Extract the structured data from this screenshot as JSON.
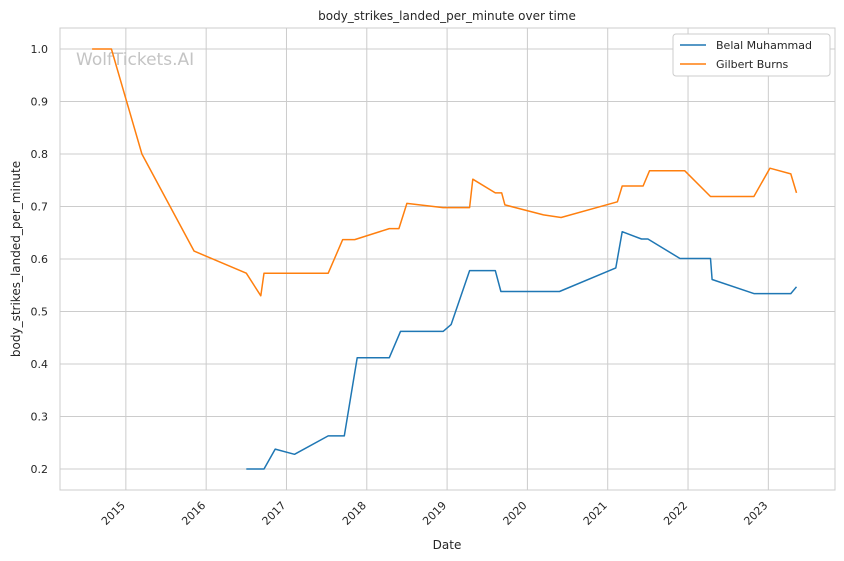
{
  "chart_data": {
    "type": "line",
    "title": "body_strikes_landed_per_minute over time",
    "xlabel": "Date",
    "ylabel": "body_strikes_landed_per_minute",
    "watermark": "WolfTickets.AI",
    "x_ticks": [
      "2015",
      "2016",
      "2017",
      "2018",
      "2019",
      "2020",
      "2021",
      "2022",
      "2023"
    ],
    "y_ticks": [
      "0.2",
      "0.3",
      "0.4",
      "0.5",
      "0.6",
      "0.7",
      "0.8",
      "0.9",
      "1.0"
    ],
    "xlim": [
      2014.18,
      2023.83
    ],
    "ylim": [
      0.16,
      1.04
    ],
    "grid": true,
    "legend_position": "top-right",
    "series": [
      {
        "name": "Belal Muhammad",
        "color": "#1f77b4",
        "points": [
          [
            2016.5,
            0.2
          ],
          [
            2016.72,
            0.2
          ],
          [
            2016.86,
            0.238
          ],
          [
            2017.1,
            0.228
          ],
          [
            2017.52,
            0.263
          ],
          [
            2017.72,
            0.263
          ],
          [
            2017.88,
            0.412
          ],
          [
            2018.28,
            0.412
          ],
          [
            2018.42,
            0.462
          ],
          [
            2018.95,
            0.462
          ],
          [
            2019.05,
            0.475
          ],
          [
            2019.28,
            0.578
          ],
          [
            2019.6,
            0.578
          ],
          [
            2019.67,
            0.538
          ],
          [
            2020.4,
            0.538
          ],
          [
            2021.1,
            0.583
          ],
          [
            2021.18,
            0.652
          ],
          [
            2021.42,
            0.638
          ],
          [
            2021.5,
            0.638
          ],
          [
            2021.9,
            0.601
          ],
          [
            2022.28,
            0.601
          ],
          [
            2022.3,
            0.561
          ],
          [
            2022.82,
            0.534
          ],
          [
            2023.28,
            0.534
          ],
          [
            2023.35,
            0.547
          ]
        ]
      },
      {
        "name": "Gilbert Burns",
        "color": "#ff7f0e",
        "points": [
          [
            2014.58,
            1.0
          ],
          [
            2014.82,
            1.0
          ],
          [
            2015.2,
            0.8
          ],
          [
            2015.85,
            0.615
          ],
          [
            2016.5,
            0.573
          ],
          [
            2016.68,
            0.53
          ],
          [
            2016.72,
            0.573
          ],
          [
            2017.52,
            0.573
          ],
          [
            2017.7,
            0.637
          ],
          [
            2017.85,
            0.637
          ],
          [
            2018.28,
            0.658
          ],
          [
            2018.4,
            0.658
          ],
          [
            2018.5,
            0.706
          ],
          [
            2018.95,
            0.698
          ],
          [
            2019.28,
            0.698
          ],
          [
            2019.32,
            0.752
          ],
          [
            2019.6,
            0.726
          ],
          [
            2019.68,
            0.726
          ],
          [
            2019.72,
            0.703
          ],
          [
            2020.2,
            0.684
          ],
          [
            2020.42,
            0.679
          ],
          [
            2021.12,
            0.709
          ],
          [
            2021.18,
            0.739
          ],
          [
            2021.44,
            0.739
          ],
          [
            2021.52,
            0.768
          ],
          [
            2021.96,
            0.768
          ],
          [
            2022.28,
            0.719
          ],
          [
            2022.82,
            0.719
          ],
          [
            2023.02,
            0.773
          ],
          [
            2023.28,
            0.762
          ],
          [
            2023.35,
            0.726
          ]
        ]
      }
    ]
  }
}
